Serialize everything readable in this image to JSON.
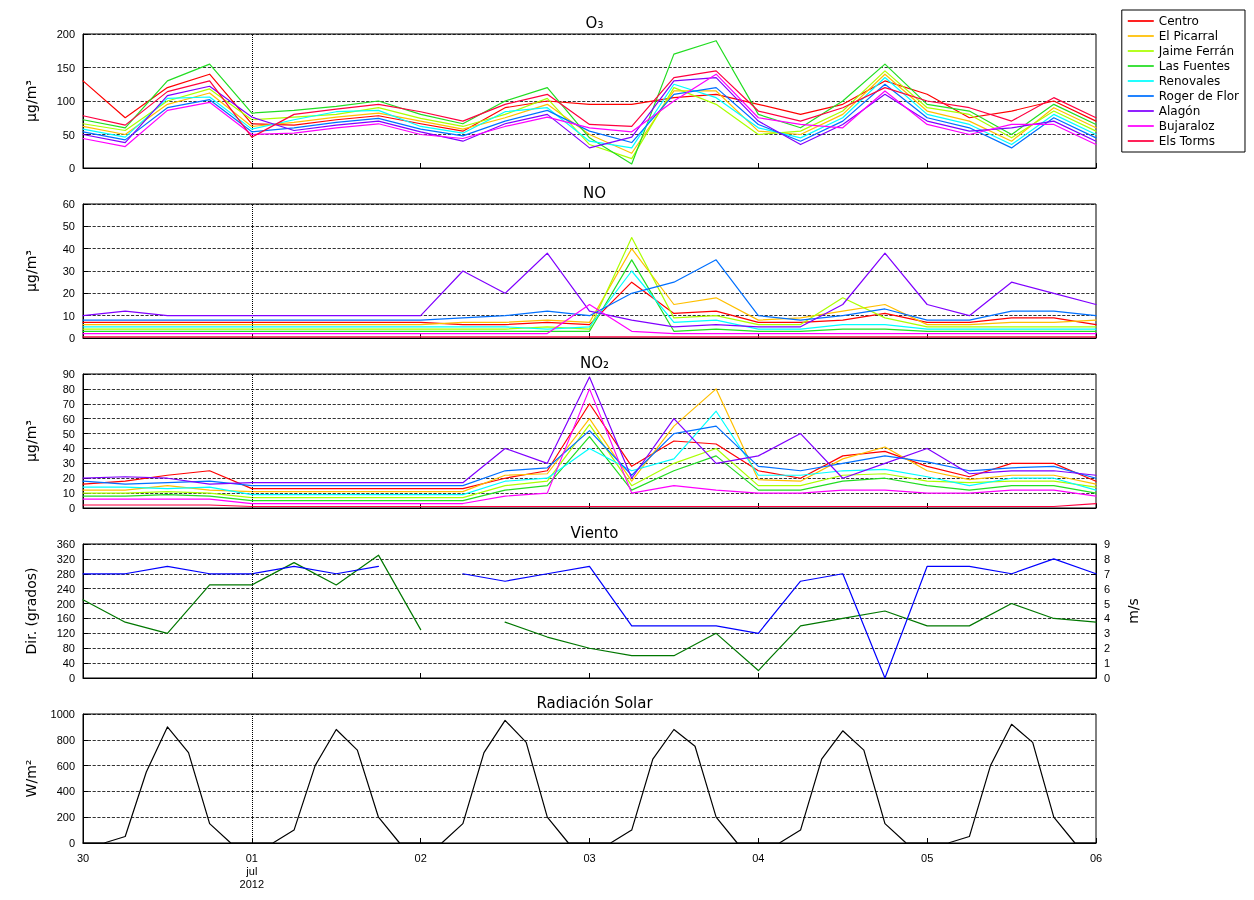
{
  "chart_data": [
    {
      "type": "line",
      "title": "O₃",
      "ylabel": "µg/m³",
      "ylim": [
        0,
        200
      ],
      "yticks": [
        0,
        50,
        100,
        150,
        200
      ],
      "xlim": [
        "2012-06-30",
        "2012-07-06"
      ],
      "xticks": [
        {
          "value": "2012-06-30",
          "label": null
        },
        {
          "value": "2012-07-01",
          "label": null
        },
        {
          "value": "2012-07-02",
          "label": null
        },
        {
          "value": "2012-07-03",
          "label": null
        },
        {
          "value": "2012-07-04",
          "label": null
        },
        {
          "value": "2012-07-05",
          "label": null
        },
        {
          "value": "2012-07-06",
          "label": null
        }
      ],
      "tick_labels": "y",
      "grid": "y",
      "legend": "right",
      "marker": "none",
      "line_style": "solid",
      "ref_lines": [
        {
          "axis": "x",
          "value": "2012-07-01",
          "line_style": "dotted",
          "color": "#000000"
        }
      ],
      "x": [
        "2012-06-30T00:00",
        "2012-06-30T06:00",
        "2012-06-30T12:00",
        "2012-06-30T18:00",
        "2012-07-01T00:00",
        "2012-07-01T06:00",
        "2012-07-01T12:00",
        "2012-07-01T18:00",
        "2012-07-02T00:00",
        "2012-07-02T06:00",
        "2012-07-02T12:00",
        "2012-07-02T18:00",
        "2012-07-03T00:00",
        "2012-07-03T06:00",
        "2012-07-03T12:00",
        "2012-07-03T18:00",
        "2012-07-04T00:00",
        "2012-07-04T06:00",
        "2012-07-04T12:00",
        "2012-07-04T18:00",
        "2012-07-05T00:00",
        "2012-07-05T06:00",
        "2012-07-05T12:00",
        "2012-07-05T18:00",
        "2012-07-06T00:00"
      ],
      "series": [
        {
          "name": "Centro",
          "color": "#ff0000",
          "values": [
            130,
            75,
            120,
            140,
            66,
            64,
            72,
            78,
            66,
            55,
            90,
            100,
            95,
            95,
            105,
            110,
            95,
            80,
            95,
            130,
            110,
            75,
            85,
            100,
            70
          ]
        },
        {
          "name": "El Picarral",
          "color": "#ffbf00",
          "values": [
            62,
            50,
            95,
            112,
            62,
            68,
            76,
            82,
            70,
            58,
            75,
            95,
            50,
            22,
            115,
            115,
            55,
            50,
            80,
            140,
            85,
            70,
            40,
            90,
            60
          ]
        },
        {
          "name": "Jaime Ferrán",
          "color": "#aaff00",
          "values": [
            66,
            56,
            100,
            118,
            72,
            76,
            80,
            90,
            74,
            62,
            80,
            104,
            35,
            14,
            120,
            95,
            50,
            55,
            85,
            145,
            90,
            80,
            45,
            85,
            55
          ]
        },
        {
          "name": "Las Fuentes",
          "color": "#22dd22",
          "values": [
            72,
            60,
            130,
            155,
            82,
            86,
            92,
            100,
            80,
            66,
            100,
            120,
            45,
            6,
            170,
            190,
            80,
            60,
            100,
            155,
            95,
            85,
            50,
            95,
            65
          ]
        },
        {
          "name": "Renovales",
          "color": "#00ffff",
          "values": [
            58,
            46,
            104,
            106,
            58,
            72,
            84,
            86,
            62,
            52,
            84,
            90,
            40,
            30,
            125,
            105,
            60,
            45,
            75,
            135,
            80,
            65,
            35,
            80,
            50
          ]
        },
        {
          "name": "Roger de Flor",
          "color": "#0070ff",
          "values": [
            54,
            42,
            90,
            102,
            54,
            60,
            68,
            74,
            58,
            48,
            70,
            86,
            55,
            38,
            110,
            120,
            65,
            40,
            70,
            125,
            75,
            60,
            30,
            75,
            45
          ]
        },
        {
          "name": "Alagón",
          "color": "#8000ff",
          "values": [
            50,
            38,
            108,
            122,
            76,
            56,
            64,
            70,
            54,
            40,
            66,
            80,
            30,
            46,
            130,
            135,
            70,
            35,
            65,
            110,
            70,
            55,
            60,
            70,
            40
          ]
        },
        {
          "name": "Bujaraloz",
          "color": "#ff00ff",
          "values": [
            44,
            32,
            86,
            98,
            50,
            52,
            60,
            66,
            50,
            44,
            62,
            76,
            60,
            54,
            100,
            140,
            75,
            65,
            60,
            115,
            65,
            50,
            65,
            65,
            35
          ]
        },
        {
          "name": "Els Torms",
          "color": "#ff0040",
          "values": [
            78,
            64,
            114,
            130,
            46,
            80,
            88,
            95,
            84,
            70,
            95,
            110,
            65,
            62,
            135,
            145,
            85,
            70,
            90,
            120,
            100,
            90,
            70,
            105,
            75
          ]
        }
      ]
    },
    {
      "type": "line",
      "title": "NO",
      "ylabel": "µg/m³",
      "ylim": [
        0,
        60
      ],
      "yticks": [
        0,
        10,
        20,
        30,
        40,
        50,
        60
      ],
      "xlim": [
        "2012-06-30",
        "2012-07-06"
      ],
      "xticks": [
        {
          "value": "2012-06-30",
          "label": null
        },
        {
          "value": "2012-07-01",
          "label": null
        },
        {
          "value": "2012-07-02",
          "label": null
        },
        {
          "value": "2012-07-03",
          "label": null
        },
        {
          "value": "2012-07-04",
          "label": null
        },
        {
          "value": "2012-07-05",
          "label": null
        },
        {
          "value": "2012-07-06",
          "label": null
        }
      ],
      "tick_labels": "y",
      "grid": "y",
      "marker": "none",
      "line_style": "solid",
      "ref_lines": [
        {
          "axis": "x",
          "value": "2012-07-01",
          "line_style": "dotted",
          "color": "#000000"
        }
      ],
      "x": [
        "2012-06-30T00:00",
        "2012-06-30T06:00",
        "2012-06-30T12:00",
        "2012-06-30T18:00",
        "2012-07-01T00:00",
        "2012-07-01T06:00",
        "2012-07-01T12:00",
        "2012-07-01T18:00",
        "2012-07-02T00:00",
        "2012-07-02T06:00",
        "2012-07-02T12:00",
        "2012-07-02T18:00",
        "2012-07-03T00:00",
        "2012-07-03T06:00",
        "2012-07-03T12:00",
        "2012-07-03T18:00",
        "2012-07-04T00:00",
        "2012-07-04T06:00",
        "2012-07-04T12:00",
        "2012-07-04T18:00",
        "2012-07-05T00:00",
        "2012-07-05T06:00",
        "2012-07-05T12:00",
        "2012-07-05T18:00",
        "2012-07-06T00:00"
      ],
      "series": [
        {
          "color": "#ff0000",
          "values": [
            7,
            7,
            7,
            7,
            7,
            7,
            7,
            7,
            7,
            6,
            6,
            7,
            6,
            25,
            11,
            12,
            7,
            7,
            8,
            11,
            7,
            7,
            9,
            9,
            6
          ]
        },
        {
          "color": "#ffbf00",
          "values": [
            6,
            6,
            6,
            6,
            6,
            6,
            6,
            6,
            6,
            7,
            7,
            8,
            7,
            40,
            15,
            18,
            8,
            9,
            12,
            15,
            6,
            6,
            7,
            7,
            8
          ]
        },
        {
          "color": "#aaff00",
          "values": [
            4,
            4,
            4,
            4,
            4,
            4,
            4,
            4,
            4,
            4,
            4,
            5,
            4,
            45,
            9,
            10,
            6,
            6,
            18,
            9,
            5,
            5,
            5,
            5,
            5
          ]
        },
        {
          "color": "#22dd22",
          "values": [
            3,
            3,
            3,
            3,
            3,
            3,
            3,
            3,
            3,
            3,
            3,
            3,
            3,
            35,
            3,
            4,
            3,
            3,
            4,
            4,
            3,
            3,
            3,
            3,
            3
          ]
        },
        {
          "color": "#00ffff",
          "values": [
            5,
            5,
            5,
            5,
            5,
            5,
            5,
            5,
            5,
            5,
            5,
            4,
            5,
            30,
            7,
            8,
            4,
            4,
            6,
            6,
            4,
            4,
            4,
            4,
            4
          ]
        },
        {
          "color": "#0070ff",
          "values": [
            8,
            8,
            8,
            8,
            8,
            8,
            8,
            8,
            8,
            9,
            10,
            12,
            10,
            20,
            25,
            35,
            10,
            8,
            10,
            13,
            8,
            8,
            12,
            12,
            10
          ]
        },
        {
          "color": "#8000ff",
          "values": [
            10,
            12,
            10,
            10,
            10,
            10,
            10,
            10,
            10,
            30,
            20,
            38,
            12,
            8,
            5,
            6,
            5,
            5,
            15,
            38,
            15,
            10,
            25,
            20,
            15
          ]
        },
        {
          "color": "#ff00ff",
          "values": [
            2,
            2,
            2,
            2,
            2,
            2,
            2,
            2,
            2,
            2,
            2,
            2,
            15,
            3,
            2,
            2,
            2,
            2,
            2,
            2,
            2,
            2,
            2,
            2,
            2
          ]
        },
        {
          "color": "#ff0040",
          "values": [
            0.5,
            0.5,
            0.5,
            0.5,
            0.5,
            0.5,
            0.5,
            0.5,
            0.5,
            0.5,
            0.5,
            0.5,
            0.5,
            0.5,
            0.5,
            0.5,
            0.5,
            0.5,
            0.5,
            0.5,
            0.5,
            0.5,
            0.5,
            0.5,
            0.5
          ]
        }
      ]
    },
    {
      "type": "line",
      "title": "NO₂",
      "ylabel": "µg/m³",
      "ylim": [
        0,
        90
      ],
      "yticks": [
        0,
        10,
        20,
        30,
        40,
        50,
        60,
        70,
        80,
        90
      ],
      "xlim": [
        "2012-06-30",
        "2012-07-06"
      ],
      "xticks": [
        {
          "value": "2012-06-30",
          "label": null
        },
        {
          "value": "2012-07-01",
          "label": null
        },
        {
          "value": "2012-07-02",
          "label": null
        },
        {
          "value": "2012-07-03",
          "label": null
        },
        {
          "value": "2012-07-04",
          "label": null
        },
        {
          "value": "2012-07-05",
          "label": null
        },
        {
          "value": "2012-07-06",
          "label": null
        }
      ],
      "tick_labels": "y",
      "grid": "y",
      "marker": "none",
      "line_style": "solid",
      "ref_lines": [
        {
          "axis": "x",
          "value": "2012-07-01",
          "line_style": "dotted",
          "color": "#000000"
        }
      ],
      "x": [
        "2012-06-30T00:00",
        "2012-06-30T06:00",
        "2012-06-30T12:00",
        "2012-06-30T18:00",
        "2012-07-01T00:00",
        "2012-07-01T06:00",
        "2012-07-01T12:00",
        "2012-07-01T18:00",
        "2012-07-02T00:00",
        "2012-07-02T06:00",
        "2012-07-02T12:00",
        "2012-07-02T18:00",
        "2012-07-03T00:00",
        "2012-07-03T06:00",
        "2012-07-03T12:00",
        "2012-07-03T18:00",
        "2012-07-04T00:00",
        "2012-07-04T06:00",
        "2012-07-04T12:00",
        "2012-07-04T18:00",
        "2012-07-05T00:00",
        "2012-07-05T06:00",
        "2012-07-05T12:00",
        "2012-07-05T18:00",
        "2012-07-06T00:00"
      ],
      "series": [
        {
          "color": "#ff0000",
          "values": [
            16,
            18,
            22,
            25,
            13,
            13,
            13,
            13,
            13,
            13,
            20,
            25,
            70,
            28,
            45,
            43,
            25,
            20,
            35,
            38,
            28,
            21,
            30,
            30,
            18
          ]
        },
        {
          "color": "#ffbf00",
          "values": [
            12,
            12,
            15,
            12,
            11,
            11,
            11,
            11,
            11,
            11,
            22,
            23,
            60,
            18,
            55,
            80,
            19,
            18,
            33,
            41,
            25,
            19,
            22,
            22,
            16
          ]
        },
        {
          "color": "#aaff00",
          "values": [
            10,
            10,
            11,
            10,
            7,
            7,
            7,
            7,
            7,
            7,
            15,
            18,
            56,
            15,
            30,
            40,
            15,
            15,
            22,
            23,
            18,
            17,
            18,
            18,
            14
          ]
        },
        {
          "color": "#22dd22",
          "values": [
            8,
            8,
            9,
            8,
            5,
            5,
            5,
            5,
            5,
            5,
            12,
            15,
            48,
            12,
            25,
            35,
            12,
            12,
            18,
            20,
            15,
            12,
            15,
            15,
            10
          ]
        },
        {
          "color": "#00ffff",
          "values": [
            14,
            14,
            13,
            14,
            9,
            9,
            9,
            9,
            9,
            9,
            18,
            20,
            40,
            25,
            33,
            65,
            22,
            22,
            25,
            26,
            21,
            15,
            20,
            20,
            12
          ]
        },
        {
          "color": "#0070ff",
          "values": [
            18,
            16,
            17,
            18,
            15,
            15,
            15,
            15,
            15,
            15,
            25,
            27,
            52,
            22,
            50,
            55,
            28,
            25,
            30,
            35,
            31,
            25,
            27,
            28,
            20
          ]
        },
        {
          "color": "#8000ff",
          "values": [
            20,
            21,
            20,
            16,
            17,
            17,
            17,
            17,
            17,
            17,
            40,
            30,
            88,
            20,
            60,
            30,
            35,
            50,
            20,
            30,
            40,
            23,
            25,
            25,
            22
          ]
        },
        {
          "color": "#ff00ff",
          "values": [
            6,
            6,
            6,
            6,
            3,
            3,
            3,
            3,
            3,
            3,
            8,
            10,
            80,
            10,
            15,
            12,
            10,
            10,
            12,
            12,
            10,
            10,
            12,
            12,
            8
          ]
        },
        {
          "color": "#ff0040",
          "values": [
            2,
            2,
            2,
            2,
            1,
            1,
            1,
            1,
            1,
            1,
            1,
            1,
            1,
            1,
            1,
            1,
            1,
            1,
            1,
            1,
            1,
            1,
            1,
            1,
            3
          ]
        }
      ]
    },
    {
      "type": "line",
      "title": "Viento",
      "ylabel": "Dir. (grados)",
      "y2label": "m/s",
      "ylim": [
        0,
        360
      ],
      "yticks": [
        0,
        40,
        80,
        120,
        160,
        200,
        240,
        280,
        320,
        360
      ],
      "y2lim": [
        0,
        9
      ],
      "y2ticks": [
        0,
        1,
        2,
        3,
        4,
        5,
        6,
        7,
        8,
        9
      ],
      "xlim": [
        "2012-06-30",
        "2012-07-06"
      ],
      "xticks": [
        {
          "value": "2012-06-30",
          "label": null
        },
        {
          "value": "2012-07-01",
          "label": null
        },
        {
          "value": "2012-07-02",
          "label": null
        },
        {
          "value": "2012-07-03",
          "label": null
        },
        {
          "value": "2012-07-04",
          "label": null
        },
        {
          "value": "2012-07-05",
          "label": null
        },
        {
          "value": "2012-07-06",
          "label": null
        }
      ],
      "tick_labels": "y",
      "grid": "y",
      "marker": "none",
      "line_style": "solid",
      "ref_lines": [
        {
          "axis": "x",
          "value": "2012-07-01",
          "line_style": "dotted",
          "color": "#000000"
        }
      ],
      "x": [
        "2012-06-30T00:00",
        "2012-06-30T06:00",
        "2012-06-30T12:00",
        "2012-06-30T18:00",
        "2012-07-01T00:00",
        "2012-07-01T06:00",
        "2012-07-01T12:00",
        "2012-07-01T18:00",
        "2012-07-02T00:00",
        "2012-07-02T06:00",
        "2012-07-02T12:00",
        "2012-07-02T18:00",
        "2012-07-03T00:00",
        "2012-07-03T06:00",
        "2012-07-03T12:00",
        "2012-07-03T18:00",
        "2012-07-04T00:00",
        "2012-07-04T06:00",
        "2012-07-04T12:00",
        "2012-07-04T18:00",
        "2012-07-05T00:00",
        "2012-07-05T06:00",
        "2012-07-05T12:00",
        "2012-07-05T18:00",
        "2012-07-06T00:00"
      ],
      "series": [
        {
          "color": "#007700",
          "values": [
            210,
            150,
            120,
            250,
            250,
            310,
            250,
            330,
            130,
            null,
            150,
            110,
            80,
            60,
            60,
            120,
            20,
            140,
            160,
            180,
            140,
            140,
            200,
            160,
            150
          ]
        },
        {
          "color": "#0000ff",
          "axis": "y2",
          "values": [
            7,
            7,
            7.5,
            7,
            7,
            7.5,
            7,
            7.5,
            null,
            7,
            6.5,
            7,
            7.5,
            3.5,
            3.5,
            3.5,
            3,
            6.5,
            7,
            0,
            7.5,
            7.5,
            7,
            8,
            7
          ]
        }
      ]
    },
    {
      "type": "line",
      "title": "Radiación Solar",
      "ylabel": "W/m²",
      "ylim": [
        0,
        1000
      ],
      "yticks": [
        0,
        200,
        400,
        600,
        800,
        1000
      ],
      "xlim": [
        "2012-06-30",
        "2012-07-06"
      ],
      "xticks": [
        {
          "value": "2012-06-30",
          "label": "30"
        },
        {
          "value": "2012-07-01",
          "label": "01\njul\n2012"
        },
        {
          "value": "2012-07-02",
          "label": "02"
        },
        {
          "value": "2012-07-03",
          "label": "03"
        },
        {
          "value": "2012-07-04",
          "label": "04"
        },
        {
          "value": "2012-07-05",
          "label": "05"
        },
        {
          "value": "2012-07-06",
          "label": "06"
        }
      ],
      "grid": "y",
      "marker": "none",
      "line_style": "solid",
      "ref_lines": [
        {
          "axis": "x",
          "value": "2012-07-01",
          "line_style": "dotted",
          "color": "#000000"
        }
      ],
      "x": [
        "2012-06-30T00:00",
        "2012-06-30T03:00",
        "2012-06-30T06:00",
        "2012-06-30T09:00",
        "2012-06-30T12:00",
        "2012-06-30T15:00",
        "2012-06-30T18:00",
        "2012-06-30T21:00",
        "2012-07-01T00:00",
        "2012-07-01T03:00",
        "2012-07-01T06:00",
        "2012-07-01T09:00",
        "2012-07-01T12:00",
        "2012-07-01T15:00",
        "2012-07-01T18:00",
        "2012-07-01T21:00",
        "2012-07-02T00:00",
        "2012-07-02T03:00",
        "2012-07-02T06:00",
        "2012-07-02T09:00",
        "2012-07-02T12:00",
        "2012-07-02T15:00",
        "2012-07-02T18:00",
        "2012-07-02T21:00",
        "2012-07-03T00:00",
        "2012-07-03T03:00",
        "2012-07-03T06:00",
        "2012-07-03T09:00",
        "2012-07-03T12:00",
        "2012-07-03T15:00",
        "2012-07-03T18:00",
        "2012-07-03T21:00",
        "2012-07-04T00:00",
        "2012-07-04T03:00",
        "2012-07-04T06:00",
        "2012-07-04T09:00",
        "2012-07-04T12:00",
        "2012-07-04T15:00",
        "2012-07-04T18:00",
        "2012-07-04T21:00",
        "2012-07-05T00:00",
        "2012-07-05T03:00",
        "2012-07-05T06:00",
        "2012-07-05T09:00",
        "2012-07-05T12:00",
        "2012-07-05T15:00",
        "2012-07-05T18:00",
        "2012-07-05T21:00",
        "2012-07-06T00:00"
      ],
      "series": [
        {
          "color": "#000000",
          "values": [
            0,
            0,
            50,
            550,
            900,
            700,
            150,
            0,
            0,
            0,
            100,
            600,
            880,
            720,
            200,
            0,
            0,
            0,
            150,
            700,
            950,
            780,
            200,
            0,
            0,
            0,
            100,
            650,
            880,
            750,
            200,
            0,
            0,
            0,
            100,
            650,
            870,
            720,
            150,
            0,
            0,
            0,
            50,
            600,
            920,
            780,
            200,
            0,
            0
          ]
        }
      ]
    }
  ]
}
